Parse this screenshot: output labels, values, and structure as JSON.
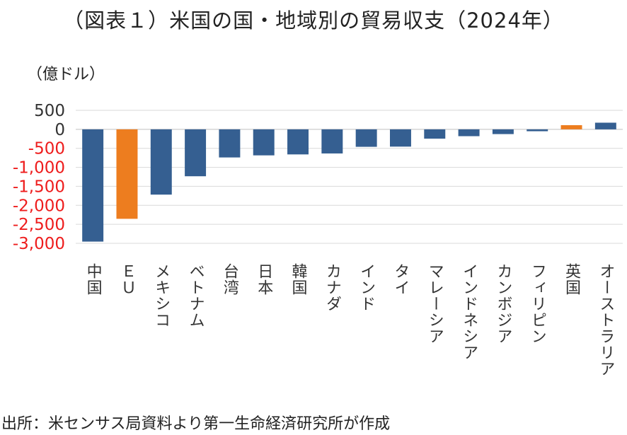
{
  "page": {
    "title": "（図表１）米国の国・地域別の貿易収支（2024年）",
    "source": "出所：米センサス局資料より第一生命経済研究所が作成"
  },
  "colors": {
    "primary": "#355f91",
    "highlight": "#ed7d1f",
    "negative_tick": "#ee1c1c",
    "grid": "#d9d9d9"
  },
  "chart_data": {
    "type": "bar",
    "title": "",
    "xlabel": "",
    "ylabel": "（億ドル）",
    "ylim": [
      -3000,
      500
    ],
    "yticks": [
      500,
      0,
      -500,
      -1000,
      -1500,
      -2000,
      -2500,
      -3000
    ],
    "ytick_labels": [
      "500",
      "0",
      "-500",
      "-1,000",
      "-1,500",
      "-2,000",
      "-2,500",
      "-3,000"
    ],
    "grid": true,
    "legend": "none",
    "categories": [
      "中国",
      "ＥＵ",
      "メキシコ",
      "ベトナム",
      "台湾",
      "日本",
      "韓国",
      "カナダ",
      "インド",
      "タイ",
      "マレーシア",
      "インドネシア",
      "カンボジア",
      "フィリピン",
      "英国",
      "オーストラリア"
    ],
    "values": [
      -2955,
      -2355,
      -1718,
      -1235,
      -740,
      -685,
      -660,
      -635,
      -460,
      -455,
      -245,
      -180,
      -125,
      -50,
      110,
      175
    ],
    "highlighted": [
      "ＥＵ",
      "英国"
    ]
  }
}
